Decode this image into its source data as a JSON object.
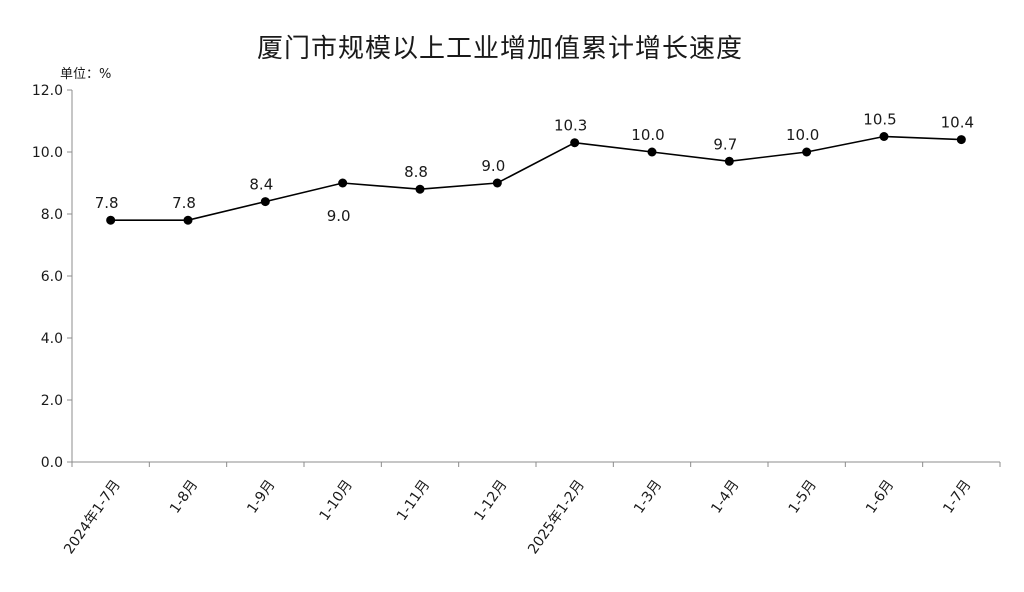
{
  "chart_data": {
    "type": "line",
    "title": "厦门市规模以上工业增加值累计增长速度",
    "unit_label": "单位：%",
    "xlabel": "",
    "ylabel": "",
    "categories": [
      "2024年1-7月",
      "1-8月",
      "1-9月",
      "1-10月",
      "1-11月",
      "1-12月",
      "2025年1-2月",
      "1-3月",
      "1-4月",
      "1-5月",
      "1-6月",
      "1-7月"
    ],
    "values": [
      7.8,
      7.8,
      8.4,
      9.0,
      8.8,
      9.0,
      10.3,
      10.0,
      9.7,
      10.0,
      10.5,
      10.4
    ],
    "data_labels": [
      "7.8",
      "7.8",
      "8.4",
      "9.0",
      "8.8",
      "9.0",
      "10.3",
      "10.0",
      "9.7",
      "10.0",
      "10.5",
      "10.4"
    ],
    "y_ticks": [
      "0.0",
      "2.0",
      "4.0",
      "6.0",
      "8.0",
      "10.0",
      "12.0"
    ],
    "ylim": [
      0,
      12
    ],
    "grid": false,
    "legend": "none",
    "series_color": "#000000"
  }
}
